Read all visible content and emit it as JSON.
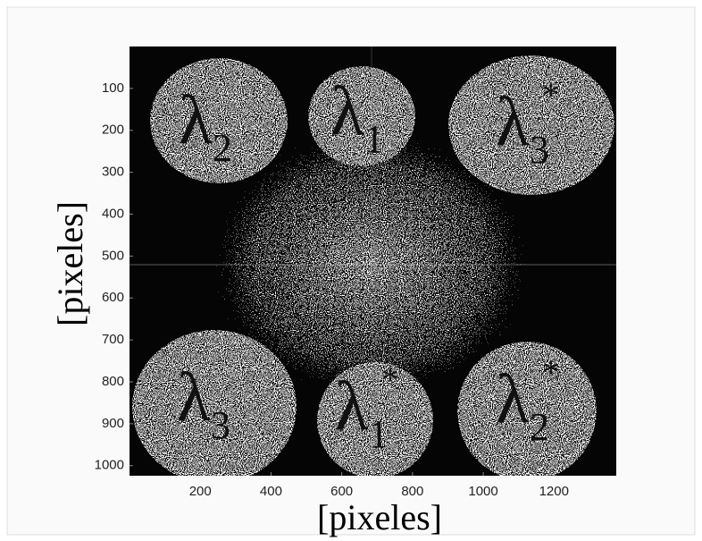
{
  "chart_data": {
    "type": "image",
    "xlabel": "[pixeles]",
    "ylabel": "[pixeles]",
    "xlim": [
      0,
      1376
    ],
    "xticks": [
      200,
      400,
      600,
      800,
      1000,
      1200
    ],
    "ylim": [
      1024,
      0
    ],
    "yticks": [
      100,
      200,
      300,
      400,
      500,
      600,
      700,
      800,
      900,
      1000
    ],
    "annotations": [
      {
        "text": "λ",
        "sub": "2"
      },
      {
        "text": "λ",
        "sub": "1"
      },
      {
        "text": "λ",
        "sub": "3",
        "sup": "*"
      },
      {
        "text": "λ",
        "sub": "3"
      },
      {
        "text": "λ",
        "sub": "1",
        "sup": "*"
      },
      {
        "text": "λ",
        "sub": "2",
        "sup": "*"
      }
    ]
  }
}
